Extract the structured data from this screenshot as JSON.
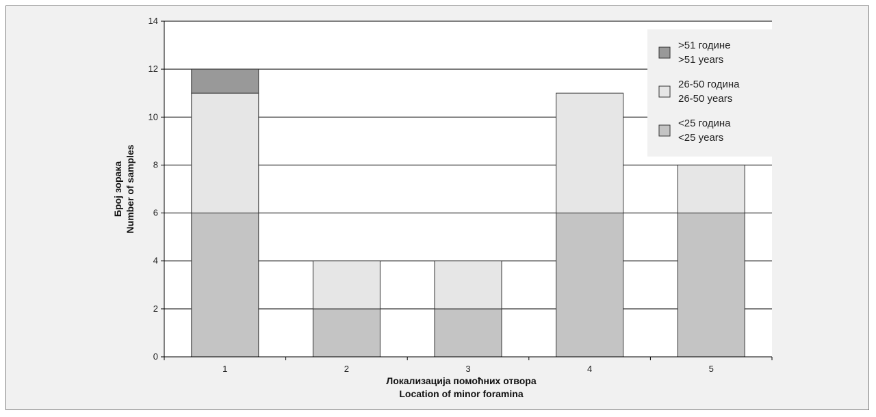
{
  "chart_data": {
    "type": "bar",
    "stacked": true,
    "categories": [
      "1",
      "2",
      "3",
      "4",
      "5"
    ],
    "series": [
      {
        "name": "<25 година\n<25 years",
        "values": [
          6,
          2,
          2,
          6,
          6
        ],
        "color": "#c4c4c4"
      },
      {
        "name": "26-50 година\n26-50 years",
        "values": [
          5,
          2,
          2,
          5,
          2
        ],
        "color": "#e6e6e6"
      },
      {
        "name": ">51 године\n>51 years",
        "values": [
          1,
          0,
          0,
          0,
          0
        ],
        "color": "#999999"
      }
    ],
    "xlabel": "Локализација помоћних отвора\nLocation of minor foramina",
    "ylabel": "Број зорака\nNumber of samples",
    "ylim": [
      0,
      14
    ],
    "yticks": [
      0,
      2,
      4,
      6,
      8,
      10,
      12,
      14
    ],
    "grid": true,
    "legend_position": "top-right",
    "legend_order": [
      2,
      1,
      0
    ],
    "colors": {
      "plot_bg": "#ffffff",
      "panel_bg": "#f1f1f1",
      "bar_stroke": "#333333",
      "grid": "#000000"
    }
  }
}
